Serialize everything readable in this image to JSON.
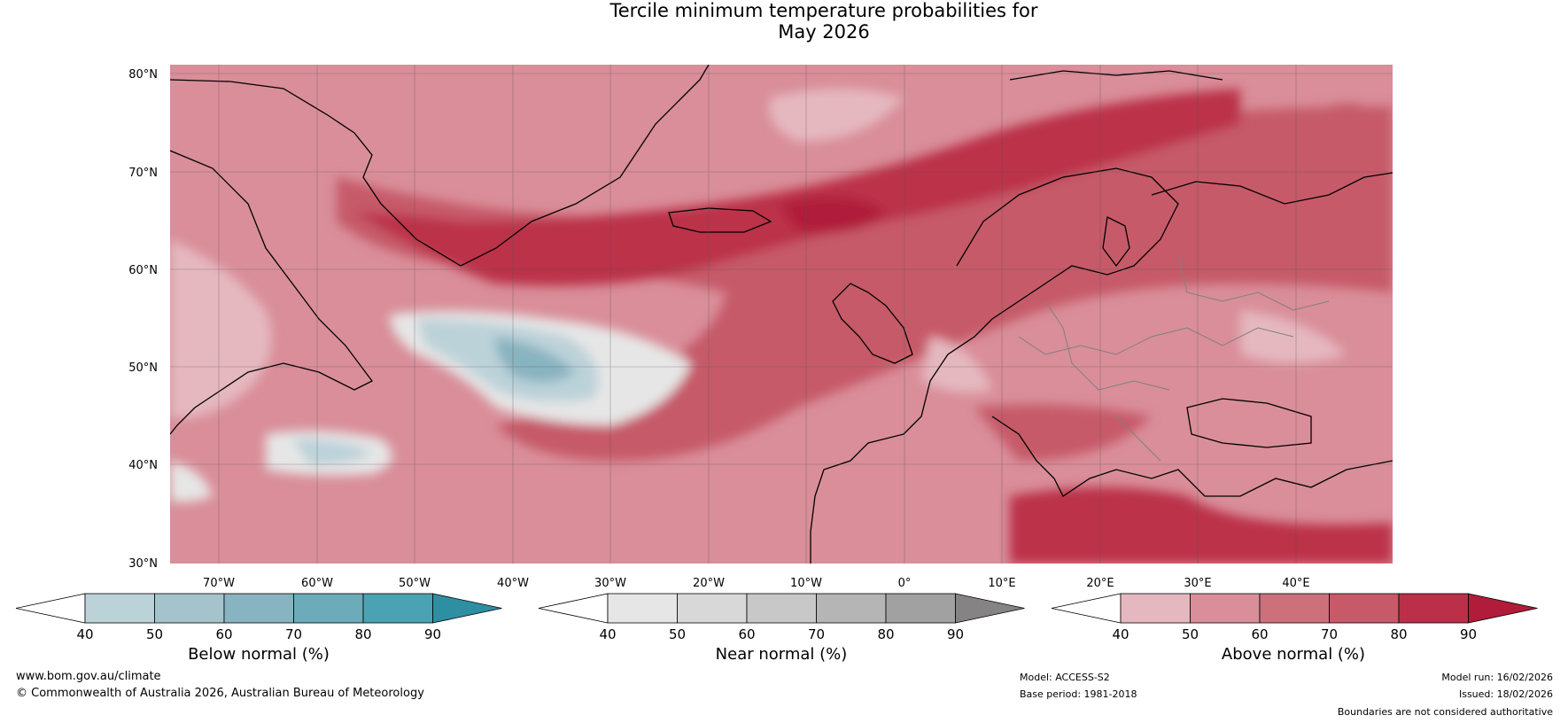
{
  "title": {
    "line1": "Tercile minimum temperature probabilities for",
    "line2": "May 2026"
  },
  "map": {
    "lat_labels": [
      "80°N",
      "70°N",
      "60°N",
      "50°N",
      "40°N",
      "30°N"
    ],
    "lon_labels": [
      "70°W",
      "60°W",
      "50°W",
      "40°W",
      "30°W",
      "20°W",
      "10°W",
      "0°",
      "10°E",
      "20°E",
      "30°E",
      "40°E"
    ]
  },
  "colorbars": [
    {
      "key": "below",
      "label": "Below normal (%)",
      "ticks": [
        "40",
        "50",
        "60",
        "70",
        "80",
        "90"
      ],
      "colors": [
        "#ffffff",
        "#bcd2d9",
        "#a4c3cb",
        "#88b3c0",
        "#6babba",
        "#4aa2b2",
        "#2e8ea2"
      ]
    },
    {
      "key": "near",
      "label": "Near normal (%)",
      "ticks": [
        "40",
        "50",
        "60",
        "70",
        "80",
        "90"
      ],
      "colors": [
        "#ffffff",
        "#e6e6e6",
        "#d8d8d8",
        "#c8c8c8",
        "#b5b5b5",
        "#a1a1a1",
        "#858383"
      ]
    },
    {
      "key": "above",
      "label": "Above normal (%)",
      "ticks": [
        "40",
        "50",
        "60",
        "70",
        "80",
        "90"
      ],
      "colors": [
        "#ffffff",
        "#e5b8bf",
        "#d98e99",
        "#cc707b",
        "#c65a69",
        "#bb3048",
        "#b01c3a"
      ]
    }
  ],
  "footer": {
    "website": "www.bom.gov.au/climate",
    "copyright": "© Commonwealth of Australia 2026, Australian Bureau of Meteorology",
    "model": "Model: ACCESS-S2",
    "base_period": "Base period: 1981-2018",
    "model_run": "Model run: 16/02/2026",
    "issued": "Issued: 18/02/2026",
    "disclaimer": "Boundaries are not considered authoritative"
  }
}
